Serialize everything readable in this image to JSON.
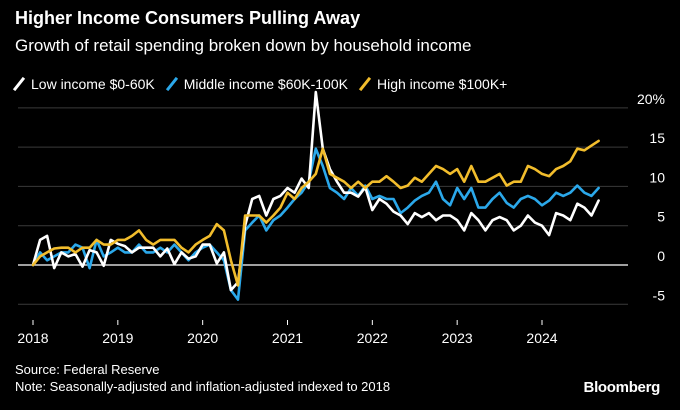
{
  "title": "Higher Income Consumers Pulling Away",
  "subtitle": "Growth of retail spending broken down by household income",
  "footer": {
    "source": "Source: Federal Reserve",
    "note": "Note: Seasonally-adjusted and inflation-adjusted indexed to 2018"
  },
  "brand": "Bloomberg",
  "colors": {
    "low": "#ffffff",
    "middle": "#2ba8ea",
    "high": "#f2bd2c",
    "zero_line": "#ffffff",
    "grid": "#3a3a3a"
  },
  "chart_data": {
    "type": "line",
    "title": "Higher Income Consumers Pulling Away",
    "subtitle": "Growth of retail spending broken down by household income",
    "xlabel": "",
    "ylabel": "",
    "x_tick_labels": [
      "2018",
      "2019",
      "2020",
      "2021",
      "2022",
      "2023",
      "2024"
    ],
    "y_tick_labels": [
      "20%",
      "15",
      "10",
      "5",
      "0",
      "-5"
    ],
    "y_ticks": [
      20,
      15,
      10,
      5,
      0,
      -5
    ],
    "ylim": [
      -7,
      21
    ],
    "x_start": "2018-01",
    "x_end": "2024-09",
    "grid": true,
    "legend_position": "top-left",
    "series": [
      {
        "name": "Low income $0-60K",
        "key": "low",
        "values": [
          0,
          3.2,
          3.7,
          -0.4,
          1.6,
          1.1,
          1.4,
          -0.2,
          1.9,
          1.6,
          -0.1,
          3.2,
          2.7,
          2.4,
          1.6,
          2.2,
          2.2,
          2.2,
          1.1,
          2.1,
          0.1,
          1.6,
          0.8,
          1.1,
          2.6,
          2.6,
          0.2,
          1.6,
          -3.2,
          -2.2,
          5,
          8.4,
          8.8,
          6.3,
          8.4,
          8.8,
          9.8,
          9.2,
          11,
          9.8,
          22,
          14.8,
          12.2,
          10.6,
          9.2,
          9.2,
          8.7,
          9.9,
          7,
          8.4,
          7.8,
          6.8,
          6.3,
          5.2,
          6.6,
          6.1,
          6.6,
          5.7,
          6.3,
          6.3,
          5.7,
          4.4,
          6.6,
          5.7,
          4.4,
          5.7,
          6.1,
          5.7,
          4.4,
          5,
          6.3,
          5.4,
          5,
          3.8,
          6.6,
          6.3,
          5.7,
          7.8,
          7.3,
          6.3,
          8.2,
          7.4,
          6.6,
          7.3,
          7.9,
          10.1,
          9.7,
          7.4,
          9.4,
          7.6,
          7.9,
          8.2
        ],
        "color": "#ffffff"
      },
      {
        "name": "Middle income $60K-100K",
        "key": "middle",
        "values": [
          0,
          1.6,
          0.6,
          1.1,
          1.6,
          1.6,
          2.6,
          2.2,
          -0.4,
          3.2,
          1.1,
          1.6,
          2.2,
          1.6,
          1.6,
          2.6,
          1.6,
          1.6,
          2.2,
          1.6,
          2.6,
          1.6,
          0.6,
          1.6,
          2.2,
          2.6,
          1.6,
          0.6,
          -3.2,
          -4.4,
          4.4,
          5.4,
          6.3,
          4.4,
          5.7,
          6.3,
          7.3,
          8.4,
          9.2,
          10.6,
          14.8,
          12.6,
          9.8,
          9.2,
          8.4,
          9.8,
          8.8,
          10.1,
          8.4,
          8.8,
          8.4,
          8.4,
          6.6,
          7.3,
          8.2,
          8.8,
          9.2,
          10.6,
          8.4,
          7.6,
          9.8,
          8.4,
          9.8,
          7.3,
          7.3,
          8.4,
          9.2,
          7.9,
          7.3,
          8.4,
          8.8,
          8.4,
          7.6,
          8.2,
          9.2,
          8.8,
          9.2,
          10.1,
          9.2,
          8.8,
          9.8,
          11.3,
          10.6,
          10.1,
          12.2,
          11.6,
          10.6,
          12.2,
          13.2,
          12.1,
          11.3,
          13.4
        ],
        "color": "#2ba8ea"
      },
      {
        "name": "High income $100K+",
        "key": "high",
        "values": [
          0,
          1.1,
          1.6,
          2.1,
          2.2,
          2.2,
          1.6,
          2.2,
          2.2,
          3.2,
          2.6,
          2.6,
          3.2,
          3.2,
          3.7,
          4.4,
          3.2,
          2.6,
          3.2,
          3.2,
          3.2,
          2.2,
          1.6,
          2.6,
          3.2,
          3.7,
          5.2,
          4.4,
          0.6,
          -2.6,
          6.3,
          6.3,
          6.3,
          5.4,
          6.3,
          7.3,
          9.2,
          8.4,
          9.8,
          10.6,
          11.6,
          14.8,
          11.6,
          11.1,
          10.6,
          9.8,
          10.6,
          9.8,
          10.6,
          10.6,
          11.3,
          10.6,
          9.8,
          10.1,
          11.1,
          10.6,
          11.6,
          12.6,
          12.2,
          11.6,
          12.2,
          10.6,
          12.6,
          10.6,
          10.6,
          11.1,
          11.6,
          10.1,
          10.6,
          10.6,
          12.6,
          12.2,
          11.6,
          11.3,
          12.2,
          12.6,
          13.2,
          14.8,
          14.6,
          15.2,
          15.8,
          16.3,
          16.9,
          17.4,
          16.9,
          16.3,
          16.7,
          17.9,
          18.7,
          16.9,
          16.2,
          16.7
        ],
        "color": "#f2bd2c"
      }
    ]
  }
}
